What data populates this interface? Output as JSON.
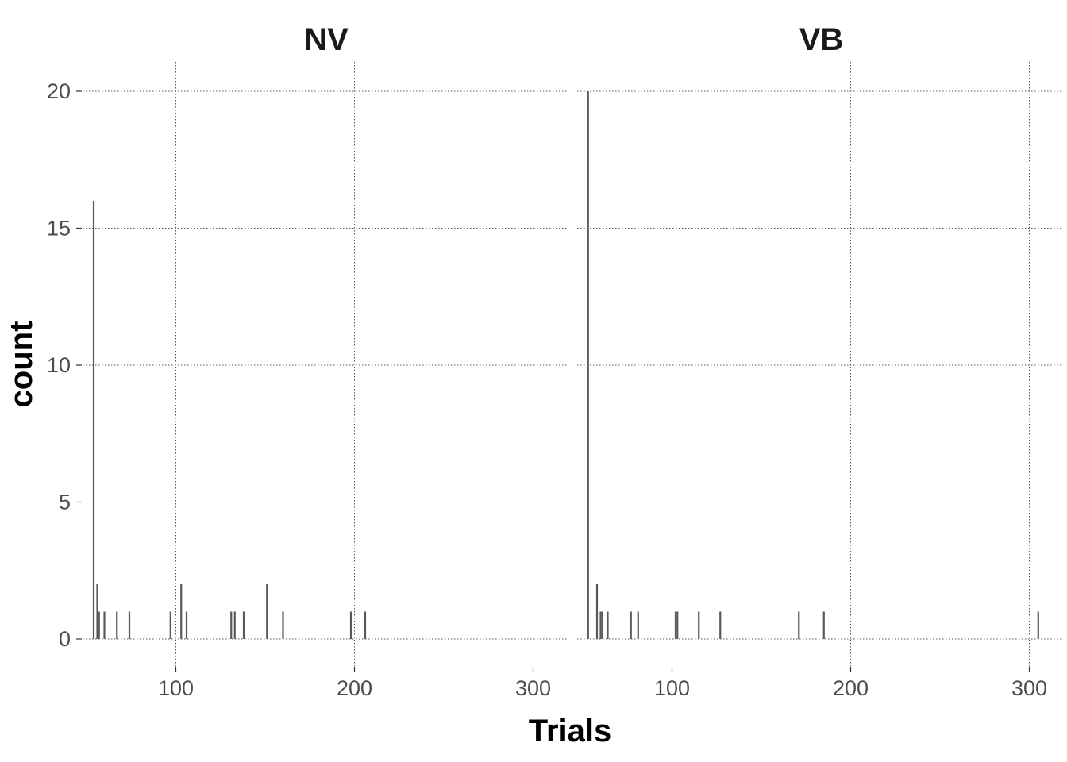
{
  "chart_data": {
    "type": "bar",
    "title": "",
    "xlabel": "Trials",
    "ylabel": "count",
    "xlim": [
      50,
      330
    ],
    "ylim": [
      0,
      20
    ],
    "x_ticks": [
      100,
      200,
      300
    ],
    "y_ticks": [
      0,
      5,
      10,
      15,
      20
    ],
    "grid": true,
    "panels": [
      {
        "name": "NV",
        "bars": [
          {
            "x": 54,
            "count": 16
          },
          {
            "x": 56,
            "count": 2
          },
          {
            "x": 57,
            "count": 1
          },
          {
            "x": 60,
            "count": 1
          },
          {
            "x": 67,
            "count": 1
          },
          {
            "x": 74,
            "count": 1
          },
          {
            "x": 97,
            "count": 1
          },
          {
            "x": 103,
            "count": 2
          },
          {
            "x": 106,
            "count": 1
          },
          {
            "x": 131,
            "count": 1
          },
          {
            "x": 133,
            "count": 1
          },
          {
            "x": 138,
            "count": 1
          },
          {
            "x": 151,
            "count": 2
          },
          {
            "x": 160,
            "count": 1
          },
          {
            "x": 198,
            "count": 1
          },
          {
            "x": 206,
            "count": 1
          }
        ]
      },
      {
        "name": "VB",
        "bars": [
          {
            "x": 53,
            "count": 20
          },
          {
            "x": 58,
            "count": 2
          },
          {
            "x": 60,
            "count": 1
          },
          {
            "x": 61,
            "count": 1
          },
          {
            "x": 64,
            "count": 1
          },
          {
            "x": 77,
            "count": 1
          },
          {
            "x": 81,
            "count": 1
          },
          {
            "x": 102,
            "count": 1
          },
          {
            "x": 103,
            "count": 1
          },
          {
            "x": 115,
            "count": 1
          },
          {
            "x": 127,
            "count": 1
          },
          {
            "x": 171,
            "count": 1
          },
          {
            "x": 185,
            "count": 1
          },
          {
            "x": 305,
            "count": 1
          }
        ]
      }
    ]
  }
}
